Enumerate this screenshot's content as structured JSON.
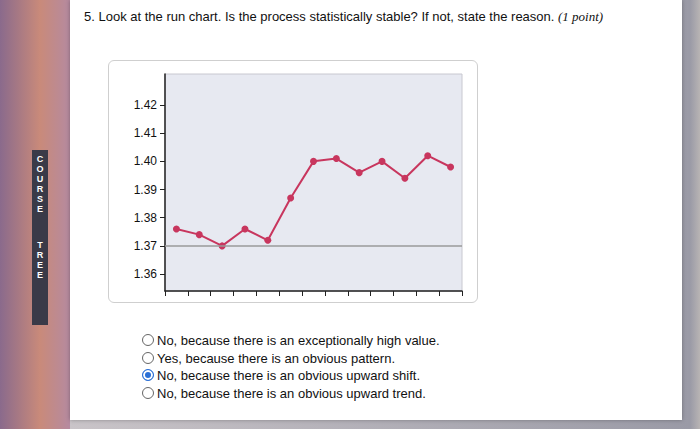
{
  "question": "5. Look at the run chart. Is the process statistically stable? If not, state the reason.",
  "points": "(1 point)",
  "side_tabs": [
    "COURSE",
    "TREE"
  ],
  "chart_data": {
    "type": "line",
    "categories": [
      null,
      null,
      null,
      null,
      null,
      null,
      null,
      null,
      null,
      null,
      null,
      null,
      null
    ],
    "values": [
      1.376,
      1.374,
      1.37,
      1.376,
      1.372,
      1.387,
      1.4,
      1.401,
      1.396,
      1.4,
      1.394,
      1.402,
      1.398
    ],
    "color": "#c8365e",
    "marker": "circle",
    "center_line": 1.373,
    "ylim": [
      1.354,
      1.431
    ],
    "yticks": [
      1.36,
      1.37,
      1.38,
      1.39,
      {
        "value": 1.4,
        "label": "1.40"
      },
      1.41,
      1.42
    ],
    "grid": false,
    "tick_labels": "y"
  },
  "options": [
    "No, because there is an exceptionally high value.",
    "Yes, because there is an obvious pattern.",
    "No, because there is an obvious upward shift.",
    "No, because there is an obvious upward trend."
  ],
  "selected": 2
}
